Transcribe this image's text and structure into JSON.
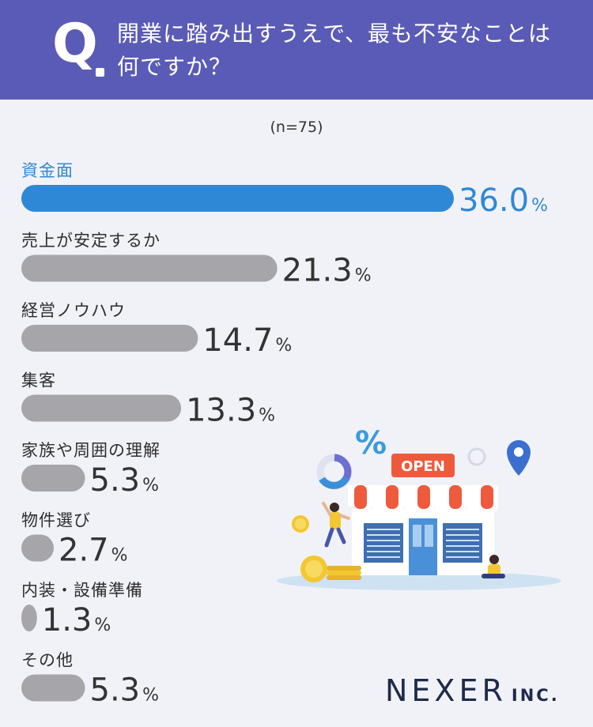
{
  "header": {
    "q_mark": "Q",
    "question": "開業に踏み出すうえで、最も不安なことは\n何ですか？"
  },
  "sample_size": "(n=75)",
  "illustration": {
    "sign_text": "OPEN",
    "percent_symbol": "%"
  },
  "logo": {
    "main": "NEXER",
    "sub": "INC."
  },
  "colors": {
    "header_bg": "#5a5bb6",
    "highlight": "#2f88d6",
    "bar": "#a5a5aa",
    "background": "#f1f2f8"
  },
  "chart_data": {
    "type": "bar",
    "orientation": "horizontal",
    "categories": [
      "資金面",
      "売上が安定するか",
      "経営ノウハウ",
      "集客",
      "家族や周囲の理解",
      "物件選び",
      "内装・設備準備",
      "その他"
    ],
    "values": [
      36.0,
      21.3,
      14.7,
      13.3,
      5.3,
      2.7,
      1.3,
      5.3
    ],
    "value_labels": [
      "36.0",
      "21.3",
      "14.7",
      "13.3",
      "5.3",
      "2.7",
      "1.3",
      "5.3"
    ],
    "unit": "%",
    "highlight_index": 0
  }
}
